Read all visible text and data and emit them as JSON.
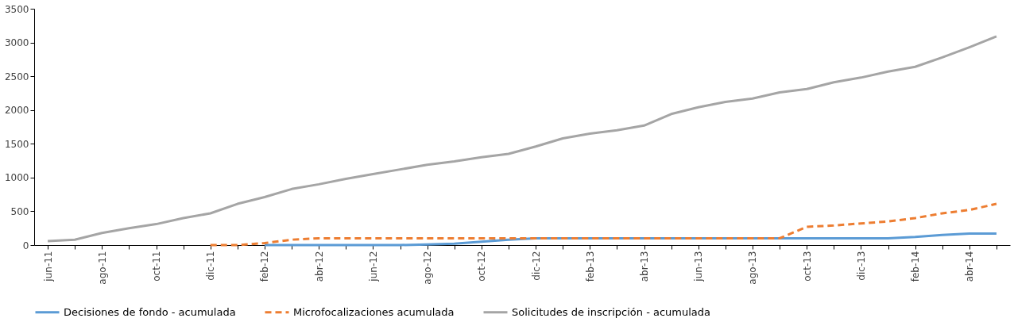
{
  "chart_data": {
    "type": "line",
    "categories": [
      "jun-11",
      null,
      "ago-11",
      null,
      "oct-11",
      null,
      "dic-11",
      null,
      "feb-12",
      null,
      "abr-12",
      null,
      "jun-12",
      null,
      "ago-12",
      null,
      "oct-12",
      null,
      "dic-12",
      null,
      "feb-13",
      null,
      "abr-13",
      null,
      "jun-13",
      null,
      "ago-13",
      null,
      "oct-13",
      null,
      "dic-13",
      null,
      "feb-14",
      null,
      "abr-14",
      null
    ],
    "series": [
      {
        "name": "Decisiones de fondo - acumulada",
        "color": "#5b9bd5",
        "line_style": "solid",
        "values": [
          null,
          null,
          null,
          null,
          null,
          null,
          null,
          null,
          0,
          0,
          0,
          0,
          0,
          0,
          10,
          20,
          50,
          80,
          100,
          100,
          100,
          100,
          100,
          100,
          100,
          100,
          100,
          100,
          100,
          100,
          100,
          100,
          120,
          150,
          170,
          170
        ]
      },
      {
        "name": "Microfocalizaciones acumulada",
        "color": "#ed7d31",
        "line_style": "dashed",
        "values": [
          null,
          null,
          null,
          null,
          null,
          null,
          0,
          0,
          30,
          80,
          100,
          100,
          100,
          100,
          100,
          100,
          100,
          100,
          100,
          100,
          100,
          100,
          100,
          100,
          100,
          100,
          100,
          100,
          270,
          290,
          320,
          350,
          400,
          470,
          520,
          610
        ]
      },
      {
        "name": "Solicitudes de inscripción - acumulada",
        "color": "#a5a5a5",
        "line_style": "solid",
        "values": [
          60,
          80,
          180,
          250,
          310,
          400,
          470,
          610,
          710,
          830,
          900,
          980,
          1050,
          1120,
          1190,
          1240,
          1300,
          1350,
          1460,
          1580,
          1650,
          1700,
          1770,
          1940,
          2040,
          2120,
          2170,
          2260,
          2310,
          2410,
          2480,
          2570,
          2640,
          2780,
          2930,
          3090
        ]
      }
    ],
    "ylim": [
      0,
      3500
    ],
    "yticks": [
      0,
      500,
      1000,
      1500,
      2000,
      2500,
      3000,
      3500
    ],
    "grid": false,
    "legend": "bottom"
  }
}
